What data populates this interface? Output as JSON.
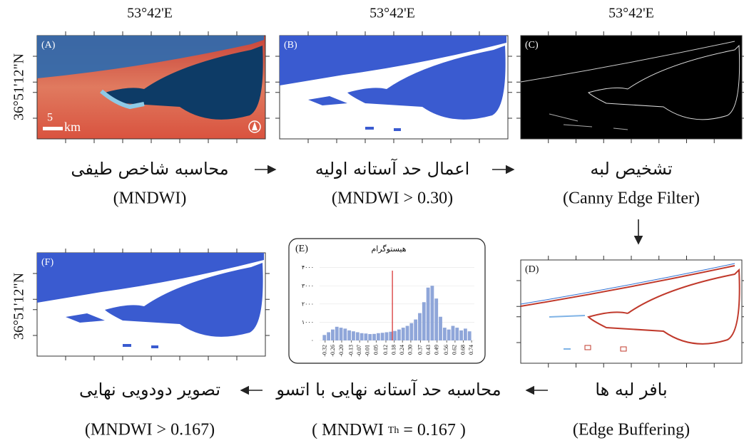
{
  "top_labels": [
    "53°42'E",
    "53°42'E",
    "53°42'E"
  ],
  "side_labels": [
    "36°51'12\"N",
    "36°51'12\"N"
  ],
  "panel_labels": [
    "(A)",
    "(B)",
    "(C)",
    "(D)",
    "(E)",
    "(F)"
  ],
  "scale_bar": {
    "number": "5",
    "unit": "km"
  },
  "steps": [
    {
      "fa": "محاسبه شاخص طیفی",
      "en": "(MNDWI)"
    },
    {
      "fa": "اعمال حد آستانه اولیه",
      "en": "(MNDWI > 0.30)"
    },
    {
      "fa": "تشخیص لبه",
      "en": "(Canny Edge Filter)"
    },
    {
      "fa": "بافر لبه ها",
      "en": "(Edge Buffering)"
    },
    {
      "fa": "محاسبه حد آستانه نهایی با اتسو",
      "en": "( MNDWI ",
      "en_sub": "Th",
      "en_end": " = 0.167 )"
    },
    {
      "fa": "تصویر دودویی نهایی",
      "en": "(MNDWI > 0.167)"
    }
  ],
  "histogram": {
    "title": "هیستوگرام",
    "bins": [
      -0.34,
      -0.31,
      -0.28,
      -0.25,
      -0.22,
      -0.19,
      -0.16,
      -0.13,
      -0.1,
      -0.07,
      -0.04,
      -0.01,
      0.02,
      0.05,
      0.08,
      0.11,
      0.14,
      0.17,
      0.2,
      0.23,
      0.26,
      0.29,
      0.32,
      0.35,
      0.38,
      0.41,
      0.44,
      0.47,
      0.5,
      0.53,
      0.56,
      0.59,
      0.62,
      0.65,
      0.68,
      0.71,
      0.74
    ],
    "counts": [
      300,
      450,
      600,
      750,
      700,
      650,
      550,
      500,
      450,
      400,
      380,
      350,
      360,
      400,
      420,
      450,
      480,
      520,
      600,
      700,
      800,
      950,
      1150,
      1500,
      2100,
      2900,
      3000,
      2300,
      1300,
      700,
      600,
      800,
      700,
      550,
      650,
      500
    ],
    "threshold": 0.167,
    "xlim": [
      -0.36,
      0.76
    ],
    "ylim": [
      0,
      4300
    ],
    "xticks": [
      -0.32,
      -0.26,
      {
        "value": -0.2,
        "label": "-0.20"
      },
      -0.13,
      -0.07,
      -0.01,
      0.05,
      0.12,
      0.18,
      0.24,
      {
        "value": 0.3,
        "label": "0.30"
      },
      0.37,
      0.43,
      0.49,
      0.56,
      0.62,
      0.68,
      0.74
    ],
    "yticks": [
      {
        "value": 0,
        "label": "۰"
      },
      {
        "value": 1000,
        "label": "۱۰۰۰"
      },
      {
        "value": 2000,
        "label": "۲۰۰۰"
      },
      {
        "value": 3000,
        "label": "۳۰۰۰"
      },
      {
        "value": 4000,
        "label": "۴۰۰۰"
      }
    ]
  }
}
